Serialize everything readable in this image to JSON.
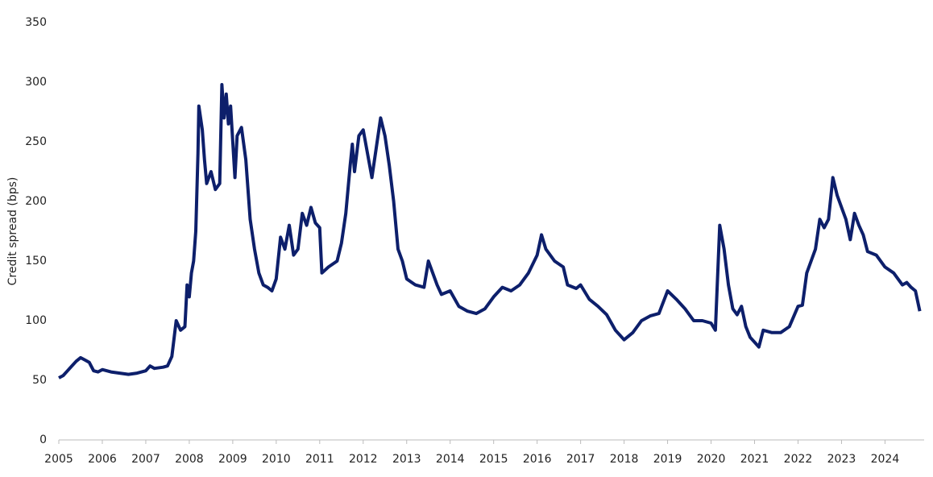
{
  "chart_data": {
    "type": "line",
    "y_label": "Credit spread (bps)",
    "color": "#0d1f6b",
    "x": [
      2005.0,
      2005.1,
      2005.2,
      2005.3,
      2005.4,
      2005.5,
      2005.6,
      2005.7,
      2005.8,
      2005.9,
      2006.0,
      2006.2,
      2006.4,
      2006.6,
      2006.8,
      2007.0,
      2007.1,
      2007.2,
      2007.4,
      2007.5,
      2007.6,
      2007.65,
      2007.7,
      2007.8,
      2007.9,
      2007.95,
      2008.0,
      2008.05,
      2008.1,
      2008.15,
      2008.2,
      2008.22,
      2008.3,
      2008.35,
      2008.4,
      2008.5,
      2008.6,
      2008.7,
      2008.75,
      2008.8,
      2008.85,
      2008.9,
      2008.95,
      2009.0,
      2009.05,
      2009.1,
      2009.2,
      2009.3,
      2009.4,
      2009.5,
      2009.6,
      2009.7,
      2009.8,
      2009.9,
      2010.0,
      2010.1,
      2010.2,
      2010.3,
      2010.4,
      2010.5,
      2010.6,
      2010.7,
      2010.8,
      2010.9,
      2011.0,
      2011.05,
      2011.2,
      2011.4,
      2011.5,
      2011.6,
      2011.7,
      2011.75,
      2011.8,
      2011.9,
      2012.0,
      2012.1,
      2012.2,
      2012.3,
      2012.4,
      2012.5,
      2012.6,
      2012.7,
      2012.8,
      2012.9,
      2013.0,
      2013.2,
      2013.4,
      2013.5,
      2013.6,
      2013.7,
      2013.8,
      2014.0,
      2014.2,
      2014.4,
      2014.6,
      2014.8,
      2015.0,
      2015.2,
      2015.4,
      2015.6,
      2015.8,
      2016.0,
      2016.1,
      2016.2,
      2016.4,
      2016.6,
      2016.7,
      2016.9,
      2017.0,
      2017.2,
      2017.4,
      2017.6,
      2017.8,
      2018.0,
      2018.2,
      2018.4,
      2018.6,
      2018.8,
      2019.0,
      2019.2,
      2019.4,
      2019.6,
      2019.8,
      2020.0,
      2020.1,
      2020.2,
      2020.3,
      2020.4,
      2020.5,
      2020.6,
      2020.7,
      2020.8,
      2020.9,
      2021.0,
      2021.1,
      2021.2,
      2021.4,
      2021.6,
      2021.8,
      2022.0,
      2022.1,
      2022.2,
      2022.3,
      2022.4,
      2022.5,
      2022.6,
      2022.7,
      2022.8,
      2022.9,
      2023.0,
      2023.1,
      2023.2,
      2023.3,
      2023.4,
      2023.5,
      2023.6,
      2023.8,
      2024.0,
      2024.2,
      2024.4,
      2024.5,
      2024.6,
      2024.7,
      2024.8
    ],
    "values": [
      52,
      54,
      58,
      62,
      66,
      69,
      67,
      65,
      58,
      57,
      59,
      57,
      56,
      55,
      56,
      58,
      62,
      60,
      61,
      62,
      70,
      85,
      100,
      92,
      95,
      130,
      120,
      140,
      150,
      175,
      240,
      280,
      260,
      235,
      215,
      225,
      210,
      215,
      298,
      270,
      290,
      265,
      280,
      250,
      220,
      255,
      262,
      235,
      185,
      160,
      140,
      130,
      128,
      125,
      135,
      170,
      160,
      180,
      155,
      160,
      190,
      180,
      195,
      182,
      178,
      140,
      145,
      150,
      165,
      190,
      230,
      248,
      225,
      255,
      260,
      240,
      220,
      245,
      270,
      255,
      230,
      200,
      160,
      150,
      135,
      130,
      128,
      150,
      140,
      130,
      122,
      125,
      112,
      108,
      106,
      110,
      120,
      128,
      125,
      130,
      140,
      155,
      172,
      160,
      150,
      145,
      130,
      127,
      130,
      118,
      112,
      105,
      92,
      84,
      90,
      100,
      104,
      106,
      125,
      118,
      110,
      100,
      100,
      98,
      92,
      180,
      160,
      130,
      110,
      105,
      112,
      95,
      86,
      82,
      78,
      92,
      90,
      90,
      95,
      112,
      113,
      140,
      150,
      160,
      185,
      178,
      185,
      220,
      205,
      195,
      185,
      168,
      190,
      180,
      172,
      158,
      155,
      145,
      140,
      130,
      132,
      128,
      125,
      108
    ],
    "xlim": [
      2005,
      2024.9
    ],
    "xticks": [
      2005,
      2006,
      2007,
      2008,
      2009,
      2010,
      2011,
      2012,
      2013,
      2014,
      2015,
      2016,
      2017,
      2018,
      2019,
      2020,
      2021,
      2022,
      2023,
      2024
    ],
    "ylim": [
      0,
      350
    ],
    "yticks": [
      0,
      50,
      100,
      150,
      200,
      250,
      300,
      350
    ]
  }
}
